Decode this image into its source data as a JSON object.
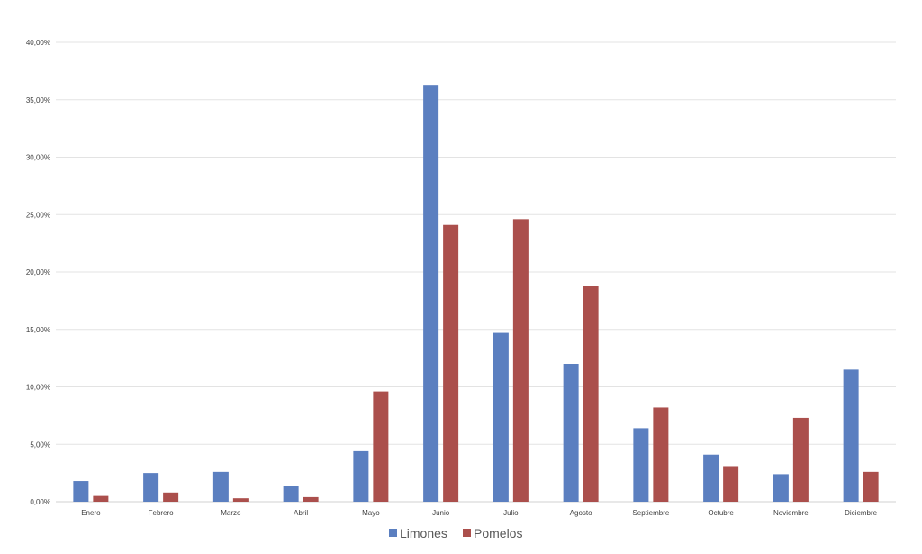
{
  "chart_data": {
    "type": "bar",
    "title": "",
    "xlabel": "",
    "ylabel": "",
    "ylim": [
      0,
      40
    ],
    "y_ticks": [
      "0,00%",
      "5,00%",
      "10,00%",
      "15,00%",
      "20,00%",
      "25,00%",
      "30,00%",
      "35,00%",
      "40,00%"
    ],
    "grid": true,
    "legend_position": "bottom",
    "categories": [
      "Enero",
      "Febrero",
      "Marzo",
      "Abril",
      "Mayo",
      "Junio",
      "Julio",
      "Agosto",
      "Septiembre",
      "Octubre",
      "Noviembre",
      "Diciembre"
    ],
    "series": [
      {
        "name": "Limones",
        "color": "#5b7fc0",
        "values": [
          1.8,
          2.5,
          2.6,
          1.4,
          4.4,
          36.3,
          14.7,
          12.0,
          6.4,
          4.1,
          2.4,
          11.5
        ]
      },
      {
        "name": "Pomelos",
        "color": "#ab4f4c",
        "values": [
          0.5,
          0.8,
          0.3,
          0.4,
          9.6,
          24.1,
          24.6,
          18.8,
          8.2,
          3.1,
          7.3,
          2.6
        ]
      }
    ]
  }
}
